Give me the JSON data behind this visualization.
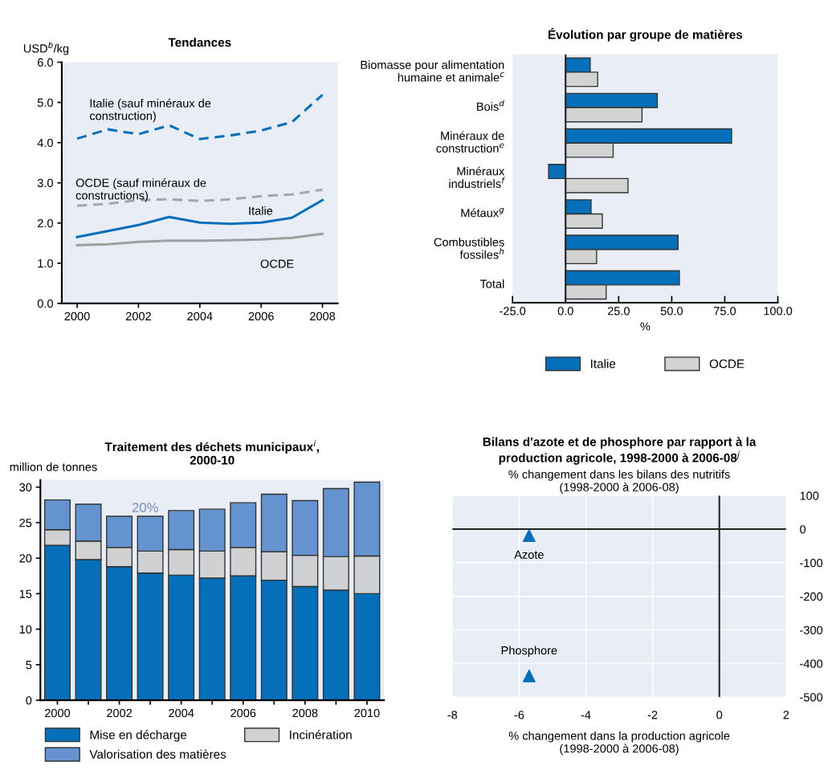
{
  "chart_data": [
    {
      "type": "line",
      "title": "Tendances",
      "ylabel": "USD$^{b}$/kg",
      "x": [
        2000,
        2001,
        2002,
        2003,
        2004,
        2005,
        2006,
        2007,
        2008
      ],
      "xlim": [
        1999.5,
        2008.5
      ],
      "xticks": [
        2000,
        2002,
        2004,
        2006,
        2008
      ],
      "ylim": [
        0,
        6
      ],
      "yticks": [
        {
          "value": 0,
          "label": "0.0"
        },
        {
          "value": 1,
          "label": "1.0"
        },
        {
          "value": 2,
          "label": "2.0"
        },
        {
          "value": 3,
          "label": "3.0"
        },
        {
          "value": 4,
          "label": "4.0"
        },
        {
          "value": 5,
          "label": "5.0"
        },
        {
          "value": 6,
          "label": "6.0"
        }
      ],
      "grid": false,
      "legend": false,
      "marker": "none",
      "series": [
        {
          "name": "Italie (sauf minéraux de\nconstruction)",
          "color": "#0570b9",
          "line_style": "dashed",
          "values": [
            4.1,
            4.33,
            4.21,
            4.43,
            4.09,
            4.18,
            4.3,
            4.51,
            5.19
          ]
        },
        {
          "name": "OCDE (sauf minéraux de\nconstructions)",
          "color": "#a6a6a6",
          "line_style": "dashed",
          "values": [
            2.43,
            2.48,
            2.57,
            2.59,
            2.55,
            2.59,
            2.67,
            2.71,
            2.83
          ]
        },
        {
          "name": "Italie",
          "color": "#0570b9",
          "line_style": "solid",
          "values": [
            1.65,
            1.8,
            1.95,
            2.15,
            2.01,
            1.98,
            2.01,
            2.13,
            2.57
          ]
        },
        {
          "name": "OCDE",
          "color": "#a0a0a0",
          "line_style": "solid",
          "values": [
            1.45,
            1.47,
            1.53,
            1.56,
            1.56,
            1.57,
            1.59,
            1.63,
            1.73
          ]
        }
      ]
    },
    {
      "type": "bar",
      "orientation": "horizontal",
      "title": "Évolution par groupe de matières",
      "xlabel": "%",
      "categories": [
        "Biomasse pour alimentation\nhumaine et animale$^{c}$",
        "Bois$^{d}$",
        "Minéraux de\nconstruction$^{e}$",
        "Minéraux\nindustriels$^{f}$",
        "Métaux$^{g}$",
        "Combustibles\nfossiles$^{h}$",
        "Total"
      ],
      "xlim": [
        -25,
        100
      ],
      "xticks": [
        {
          "value": -25,
          "label": "-25.0"
        },
        {
          "value": 0,
          "label": "0.0"
        },
        {
          "value": 25,
          "label": "25.0"
        },
        {
          "value": 50,
          "label": "50.0"
        },
        {
          "value": 75,
          "label": "75.0"
        },
        {
          "value": 100,
          "label": "100.0"
        }
      ],
      "grid": false,
      "legend": "bottom",
      "ref_lines": [
        {
          "axis": "x",
          "value": 0,
          "color": "#222222"
        }
      ],
      "series": [
        {
          "name": "Italie",
          "color": "#0570b9",
          "values": [
            11.6,
            43.2,
            78.2,
            -8.0,
            12.0,
            53.0,
            53.6
          ]
        },
        {
          "name": "OCDE",
          "color": "#d3d3d3",
          "values": [
            15.1,
            36.0,
            22.4,
            29.4,
            17.3,
            14.6,
            19.1
          ]
        }
      ]
    },
    {
      "type": "bar",
      "stacked": true,
      "title": "Traitement des déchets municipaux$^{i}$,\n2000-10",
      "ylabel": "million de tonnes",
      "categories": [
        "2000",
        null,
        "2002",
        null,
        "2004",
        null,
        "2006",
        null,
        "2008",
        null,
        "2010"
      ],
      "ylim": [
        0,
        31
      ],
      "yticks": [
        0,
        5,
        10,
        15,
        20,
        25,
        30
      ],
      "grid": false,
      "legend": "bottom",
      "annotations": [
        "20%"
      ],
      "series": [
        {
          "name": "Mise en décharge",
          "color": "#0570b9",
          "values": [
            21.8,
            19.8,
            18.8,
            17.9,
            17.6,
            17.2,
            17.5,
            16.9,
            16.0,
            15.5,
            15.0
          ]
        },
        {
          "name": "Incinération",
          "color": "#d0d1d3",
          "values": [
            2.2,
            2.6,
            2.7,
            3.1,
            3.6,
            3.8,
            4.0,
            4.0,
            4.4,
            4.7,
            5.3
          ]
        },
        {
          "name": "Valorisation des matières",
          "color": "#6593cf",
          "values": [
            4.2,
            5.2,
            4.4,
            4.9,
            5.5,
            5.9,
            6.3,
            8.1,
            7.7,
            9.6,
            10.4
          ]
        }
      ]
    },
    {
      "type": "scatter",
      "title": "Bilans d'azote et de phosphore par rapport à la\nproduction agricole, 1998-2000 à 2006-08$^{j}$",
      "subtitle": "% changement dans les bilans des nutritifs\n(1998-2000 à 2006-08)",
      "xlabel": "% changement dans la production agricole\n(1998-2000 à 2006-08)",
      "xlim": [
        -8,
        2
      ],
      "xticks": [
        -8,
        -6,
        -4,
        -2,
        0,
        2
      ],
      "ylim": [
        -500,
        100
      ],
      "yticks": [
        -500,
        -400,
        -300,
        -200,
        -100,
        0,
        100
      ],
      "grid": true,
      "marker": "triangle",
      "series": [
        {
          "color": "#0570b9",
          "x": [
            -5.7,
            -5.7
          ],
          "values": [
            -19,
            -437
          ]
        }
      ],
      "annotations": [
        {
          "text": "Azote",
          "x": -5.7,
          "y": -19
        },
        {
          "text": "Phosphore",
          "x": -5.7,
          "y": -437
        }
      ]
    }
  ]
}
